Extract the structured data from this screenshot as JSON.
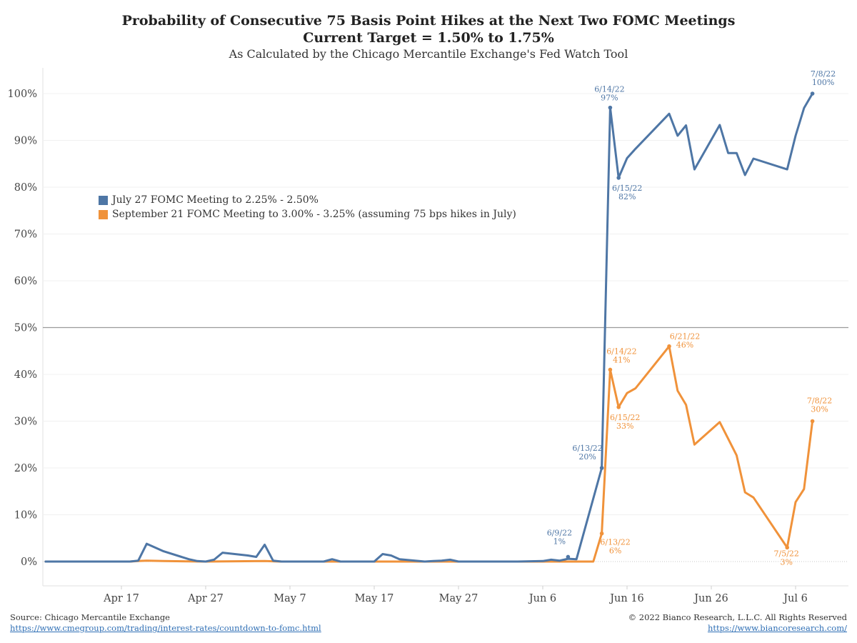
{
  "title_line1": "Probability of Consecutive 75 Basis Point Hikes at the Next Two FOMC Meetings",
  "title_line2": "Current Target = 1.50% to 1.75%",
  "subtitle": "As Calculated by the Chicago Mercantile Exchange's Fed Watch Tool",
  "footer": {
    "source": "Source: Chicago Mercantile Exchange",
    "source_url": "https://www.cmegroup.com/trading/interest-rates/countdown-to-fomc.html",
    "copyright": "© 2022 Bianco Research, L.L.C. All Rights Reserved",
    "site_url": "https://www.biancoresearch.com/"
  },
  "chart_data": {
    "type": "line",
    "xlim": [
      "2022-04-12",
      "2022-07-15"
    ],
    "ylim": [
      -5,
      105
    ],
    "x_ticks": [
      {
        "date": "2022-04-17",
        "label": "Apr 17"
      },
      {
        "date": "2022-04-27",
        "label": "Apr 27"
      },
      {
        "date": "2022-05-07",
        "label": "May 7"
      },
      {
        "date": "2022-05-17",
        "label": "May 17"
      },
      {
        "date": "2022-05-27",
        "label": "May 27"
      },
      {
        "date": "2022-06-06",
        "label": "Jun 6"
      },
      {
        "date": "2022-06-16",
        "label": "Jun 16"
      },
      {
        "date": "2022-06-26",
        "label": "Jun 26"
      },
      {
        "date": "2022-07-06",
        "label": "Jul 6"
      }
    ],
    "y_ticks": [
      0,
      10,
      20,
      30,
      40,
      50,
      60,
      70,
      80,
      90,
      100
    ],
    "y_tick_suffix": "%",
    "reference_line_y": 50,
    "grid": true,
    "legend_position": "upper-left",
    "series": [
      {
        "name": "July 27 FOMC Meeting to 2.25% - 2.50%",
        "color": "#4e76a5",
        "points": [
          [
            "2022-04-08",
            0
          ],
          [
            "2022-04-11",
            0
          ],
          [
            "2022-04-12",
            0
          ],
          [
            "2022-04-13",
            0
          ],
          [
            "2022-04-14",
            0
          ],
          [
            "2022-04-18",
            0
          ],
          [
            "2022-04-19",
            0.2
          ],
          [
            "2022-04-20",
            3.8
          ],
          [
            "2022-04-21",
            3
          ],
          [
            "2022-04-22",
            2.2
          ],
          [
            "2022-04-25",
            0.5
          ],
          [
            "2022-04-26",
            0.1
          ],
          [
            "2022-04-27",
            0
          ],
          [
            "2022-04-28",
            0.4
          ],
          [
            "2022-04-29",
            1.9
          ],
          [
            "2022-05-02",
            1.3
          ],
          [
            "2022-05-03",
            1
          ],
          [
            "2022-05-04",
            3.6
          ],
          [
            "2022-05-05",
            0.2
          ],
          [
            "2022-05-06",
            0
          ],
          [
            "2022-05-09",
            0
          ],
          [
            "2022-05-10",
            0
          ],
          [
            "2022-05-11",
            0
          ],
          [
            "2022-05-12",
            0.5
          ],
          [
            "2022-05-13",
            0
          ],
          [
            "2022-05-16",
            0
          ],
          [
            "2022-05-17",
            0
          ],
          [
            "2022-05-18",
            1.6
          ],
          [
            "2022-05-19",
            1.3
          ],
          [
            "2022-05-20",
            0.5
          ],
          [
            "2022-05-23",
            0
          ],
          [
            "2022-05-24",
            0.1
          ],
          [
            "2022-05-25",
            0.2
          ],
          [
            "2022-05-26",
            0.4
          ],
          [
            "2022-05-27",
            0
          ],
          [
            "2022-05-31",
            0
          ],
          [
            "2022-06-01",
            0
          ],
          [
            "2022-06-02",
            0
          ],
          [
            "2022-06-03",
            0
          ],
          [
            "2022-06-06",
            0.1
          ],
          [
            "2022-06-07",
            0.4
          ],
          [
            "2022-06-08",
            0.2
          ],
          [
            "2022-06-09",
            0.6
          ],
          [
            "2022-06-10",
            0.5
          ],
          [
            "2022-06-13",
            20
          ],
          [
            "2022-06-14",
            97
          ],
          [
            "2022-06-15",
            82
          ],
          [
            "2022-06-16",
            86.2
          ],
          [
            "2022-06-17",
            88.2
          ],
          [
            "2022-06-21",
            95.7
          ],
          [
            "2022-06-22",
            91
          ],
          [
            "2022-06-23",
            93.2
          ],
          [
            "2022-06-24",
            83.8
          ],
          [
            "2022-06-27",
            93.3
          ],
          [
            "2022-06-28",
            87.3
          ],
          [
            "2022-06-29",
            87.3
          ],
          [
            "2022-06-30",
            82.6
          ],
          [
            "2022-07-01",
            86.1
          ],
          [
            "2022-07-05",
            83.8
          ],
          [
            "2022-07-06",
            91
          ],
          [
            "2022-07-07",
            96.9
          ],
          [
            "2022-07-08",
            100
          ]
        ],
        "annotations": [
          {
            "date": "2022-06-09",
            "value": 1,
            "label": "6/9/22",
            "value_label": "1%"
          },
          {
            "date": "2022-06-13",
            "value": 20,
            "label": "6/13/22",
            "value_label": "20%"
          },
          {
            "date": "2022-06-14",
            "value": 97,
            "label": "6/14/22",
            "value_label": "97%"
          },
          {
            "date": "2022-06-15",
            "value": 82,
            "label": "6/15/22",
            "value_label": "82%"
          },
          {
            "date": "2022-07-08",
            "value": 100,
            "label": "7/8/22",
            "value_label": "100%"
          }
        ]
      },
      {
        "name": "September 21 FOMC Meeting to 3.00% - 3.25% (assuming 75 bps hikes in July)",
        "color": "#f0923a",
        "points": [
          [
            "2022-04-08",
            0
          ],
          [
            "2022-04-18",
            0
          ],
          [
            "2022-04-19",
            0.1
          ],
          [
            "2022-04-20",
            0.2
          ],
          [
            "2022-04-22",
            0.1
          ],
          [
            "2022-04-27",
            0
          ],
          [
            "2022-05-04",
            0.1
          ],
          [
            "2022-05-06",
            0
          ],
          [
            "2022-06-10",
            0
          ],
          [
            "2022-06-11",
            0
          ],
          [
            "2022-06-12",
            0
          ],
          [
            "2022-06-13",
            6
          ],
          [
            "2022-06-14",
            41
          ],
          [
            "2022-06-15",
            33
          ],
          [
            "2022-06-16",
            36
          ],
          [
            "2022-06-17",
            37
          ],
          [
            "2022-06-21",
            46
          ],
          [
            "2022-06-22",
            36.5
          ],
          [
            "2022-06-23",
            33.5
          ],
          [
            "2022-06-24",
            25
          ],
          [
            "2022-06-27",
            29.8
          ],
          [
            "2022-06-29",
            22.7
          ],
          [
            "2022-06-30",
            14.8
          ],
          [
            "2022-07-01",
            13.7
          ],
          [
            "2022-07-05",
            3
          ],
          [
            "2022-07-06",
            12.7
          ],
          [
            "2022-07-07",
            15.5
          ],
          [
            "2022-07-08",
            30
          ]
        ],
        "annotations": [
          {
            "date": "2022-06-13",
            "value": 6,
            "label": "6/13/22",
            "value_label": "6%"
          },
          {
            "date": "2022-06-14",
            "value": 41,
            "label": "6/14/22",
            "value_label": "41%"
          },
          {
            "date": "2022-06-15",
            "value": 33,
            "label": "6/15/22",
            "value_label": "33%"
          },
          {
            "date": "2022-06-21",
            "value": 46,
            "label": "6/21/22",
            "value_label": "46%"
          },
          {
            "date": "2022-07-05",
            "value": 3,
            "label": "7/5/22",
            "value_label": "3%"
          },
          {
            "date": "2022-07-08",
            "value": 30,
            "label": "7/8/22",
            "value_label": "30%"
          }
        ]
      }
    ]
  }
}
